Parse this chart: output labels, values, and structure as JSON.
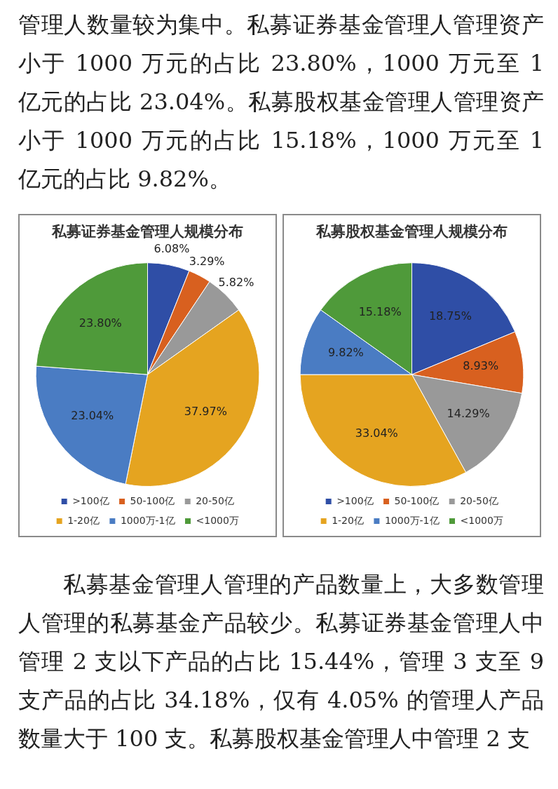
{
  "chart_data": [
    {
      "type": "pie",
      "title": "私募证券基金管理人规模分布",
      "categories": [
        ">100亿",
        "50-100亿",
        "20-50亿",
        "1-20亿",
        "1000万-1亿",
        "<1000万"
      ],
      "values": [
        6.08,
        3.29,
        5.82,
        37.97,
        23.04,
        23.8
      ],
      "value_labels": [
        "6.08%",
        "3.29%",
        "5.82%",
        "37.97%",
        "23.04%",
        "23.80%"
      ],
      "colors": [
        "#2f4ea6",
        "#d8601f",
        "#999999",
        "#e5a420",
        "#4a7cc3",
        "#4f9a3a"
      ],
      "legend": "bottom",
      "annotations": [
        "管理人数量较为集中。私募证券基金管理人管理资产小于 1000 万元的占比 23.80%，1000 万元至 1 亿元的占比 23.04%。私募股权基金管理人管理资产小于 1000 万元的占比 15.18%，1000 万元至 1 亿元的占比 9.82%。"
      ]
    },
    {
      "type": "pie",
      "title": "私募股权基金管理人规模分布",
      "categories": [
        ">100亿",
        "50-100亿",
        "20-50亿",
        "1-20亿",
        "1000万-1亿",
        "<1000万"
      ],
      "values": [
        18.75,
        8.93,
        14.29,
        33.04,
        9.82,
        15.18
      ],
      "value_labels": [
        "18.75%",
        "8.93%",
        "14.29%",
        "33.04%",
        "9.82%",
        "15.18%"
      ],
      "colors": [
        "#2f4ea6",
        "#d8601f",
        "#999999",
        "#e5a420",
        "#4a7cc3",
        "#4f9a3a"
      ],
      "legend": "bottom",
      "annotations": [
        "私募基金管理人管理的产品数量上，大多数管理人管理的私募基金产品较少。私募证券基金管理人中管理 2 支以下产品的占比 15.44%，管理 3 支至 9 支产品的占比 34.18%，仅有 4.05% 的管理人产品数量大于 100 支。私募股权基金管理人中管理 2 支"
      ]
    }
  ]
}
